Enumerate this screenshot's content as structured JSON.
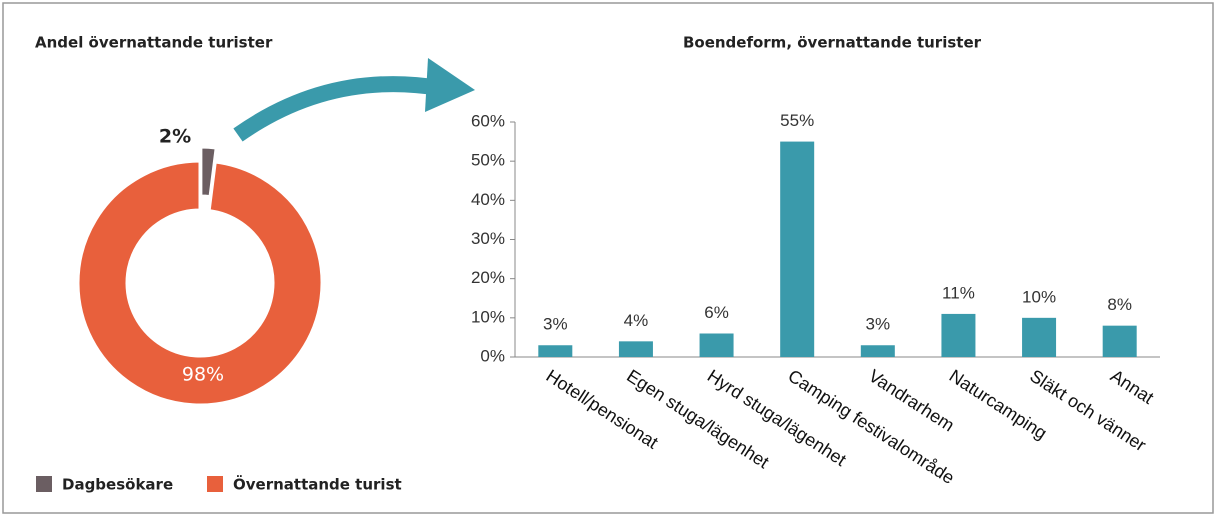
{
  "chart_data": [
    {
      "type": "donut",
      "title": "Andel övernattande turister",
      "categories": [
        "Dagbesökare",
        "Övernattande turist"
      ],
      "values": [
        2,
        98
      ],
      "value_labels": [
        "2%",
        "98%"
      ],
      "colors": [
        "#6b5e62",
        "#e8603c"
      ]
    },
    {
      "type": "bar",
      "title": "Boendeform, övernattande turister",
      "categories": [
        "Hotell/pensionat",
        "Egen stuga/lägenhet",
        "Hyrd stuga/lägenhet",
        "Camping festivalområde",
        "Vandrarhem",
        "Naturcamping",
        "Släkt och vänner",
        "Annat"
      ],
      "values": [
        3,
        4,
        6,
        55,
        3,
        11,
        10,
        8
      ],
      "value_labels": [
        "3%",
        "4%",
        "6%",
        "55%",
        "3%",
        "11%",
        "10%",
        "8%"
      ],
      "color": "#3a9aab",
      "ylim": [
        0,
        60
      ],
      "yticks": [
        {
          "value": 0,
          "label": "0%"
        },
        {
          "value": 10,
          "label": "10%"
        },
        {
          "value": 20,
          "label": "20%"
        },
        {
          "value": 30,
          "label": "30%"
        },
        {
          "value": 40,
          "label": "40%"
        },
        {
          "value": 50,
          "label": "50%"
        },
        {
          "value": 60,
          "label": "60%"
        }
      ]
    }
  ]
}
